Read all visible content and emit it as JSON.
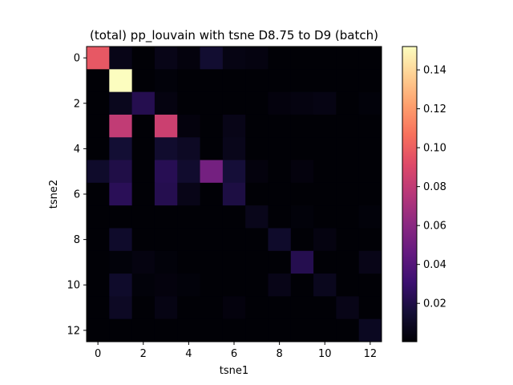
{
  "chart_data": {
    "type": "heatmap",
    "title": "(total) pp_louvain with tsne D8.75 to D9 (batch)",
    "xlabel": "tsne1",
    "ylabel": "tsne2",
    "x_ticks": [
      "0",
      "2",
      "4",
      "6",
      "8",
      "10",
      "12"
    ],
    "y_ticks": [
      "0",
      "2",
      "4",
      "6",
      "8",
      "10",
      "12"
    ],
    "colorbar_ticks": [
      "0.02",
      "0.04",
      "0.06",
      "0.08",
      "0.10",
      "0.12",
      "0.14"
    ],
    "colormap": "magma",
    "vmin": 0.0003,
    "vmax": 0.152,
    "n_rows": 13,
    "n_cols": 13,
    "values": [
      [
        0.097,
        0.006,
        0.001,
        0.006,
        0.003,
        0.014,
        0.005,
        0.004,
        0.001,
        0.001,
        0.001,
        0.001,
        0.001
      ],
      [
        0.001,
        0.152,
        0.001,
        0.002,
        0.001,
        0.001,
        0.001,
        0.001,
        0.001,
        0.001,
        0.001,
        0.001,
        0.001
      ],
      [
        0.001,
        0.008,
        0.022,
        0.004,
        0.001,
        0.001,
        0.001,
        0.001,
        0.003,
        0.004,
        0.005,
        0.001,
        0.002
      ],
      [
        0.001,
        0.08,
        0.001,
        0.084,
        0.003,
        0.001,
        0.006,
        0.001,
        0.001,
        0.001,
        0.001,
        0.001,
        0.001
      ],
      [
        0.001,
        0.015,
        0.001,
        0.013,
        0.01,
        0.001,
        0.007,
        0.001,
        0.001,
        0.001,
        0.001,
        0.001,
        0.001
      ],
      [
        0.012,
        0.02,
        0.001,
        0.023,
        0.013,
        0.052,
        0.016,
        0.003,
        0.001,
        0.003,
        0.001,
        0.001,
        0.001
      ],
      [
        0.001,
        0.024,
        0.001,
        0.022,
        0.006,
        0.001,
        0.019,
        0.001,
        0.001,
        0.001,
        0.001,
        0.001,
        0.001
      ],
      [
        0.001,
        0.001,
        0.001,
        0.001,
        0.001,
        0.001,
        0.001,
        0.007,
        0.001,
        0.002,
        0.001,
        0.001,
        0.002
      ],
      [
        0.001,
        0.012,
        0.001,
        0.001,
        0.001,
        0.001,
        0.001,
        0.001,
        0.012,
        0.001,
        0.004,
        0.001,
        0.001
      ],
      [
        0.001,
        0.002,
        0.004,
        0.002,
        0.001,
        0.001,
        0.001,
        0.001,
        0.001,
        0.022,
        0.001,
        0.001,
        0.006
      ],
      [
        0.001,
        0.012,
        0.002,
        0.003,
        0.002,
        0.001,
        0.001,
        0.001,
        0.006,
        0.001,
        0.008,
        0.001,
        0.001
      ],
      [
        0.001,
        0.01,
        0.001,
        0.005,
        0.001,
        0.001,
        0.003,
        0.001,
        0.001,
        0.001,
        0.001,
        0.006,
        0.001
      ],
      [
        0.001,
        0.001,
        0.001,
        0.001,
        0.001,
        0.001,
        0.001,
        0.001,
        0.001,
        0.001,
        0.001,
        0.001,
        0.009
      ]
    ]
  }
}
